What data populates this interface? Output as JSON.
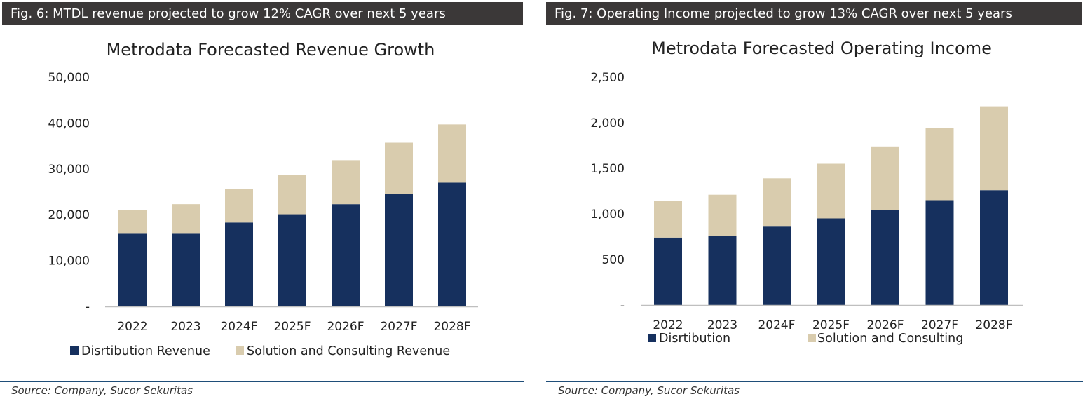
{
  "figures": [
    {
      "caption": "Fig. 6: MTDL revenue projected to grow 12% CAGR over next 5 years",
      "source": "Source: Company, Sucor Sekuritas"
    },
    {
      "caption": "Fig. 7: Operating Income projected to grow 13% CAGR over next 5 years",
      "source": "Source: Company, Sucor Sekuritas"
    }
  ],
  "colors": {
    "dark_series": "#16305e",
    "light_series": "#d9ccae",
    "caption_bar": "#3b3838",
    "source_rule": "#1f4e79",
    "axis": "#bfbfbf"
  },
  "chart_data": [
    {
      "type": "bar",
      "stacked": true,
      "title": "Metrodata Forecasted Revenue Growth",
      "categories": [
        "2022",
        "2023",
        "2024F",
        "2025F",
        "2026F",
        "2027F",
        "2028F"
      ],
      "series": [
        {
          "name": "Disrtibution Revenue",
          "values": [
            16000,
            16000,
            18300,
            20100,
            22300,
            24500,
            27000
          ]
        },
        {
          "name": "Solution and Consulting Revenue",
          "values": [
            5000,
            6300,
            7300,
            8600,
            9600,
            11200,
            12700
          ]
        }
      ],
      "yticks": [
        "-",
        "10,000",
        "20,000",
        "30,000",
        "40,000",
        "50,000"
      ],
      "ylim": [
        0,
        50000
      ],
      "grid": false,
      "legend": "bottom"
    },
    {
      "type": "bar",
      "stacked": true,
      "title": "Metrodata Forecasted Operating Income",
      "categories": [
        "2022",
        "2023",
        "2024F",
        "2025F",
        "2026F",
        "2027F",
        "2028F"
      ],
      "series": [
        {
          "name": "Disrtibution",
          "values": [
            740,
            760,
            860,
            950,
            1040,
            1150,
            1260
          ]
        },
        {
          "name": "Solution and Consulting",
          "values": [
            400,
            450,
            530,
            600,
            700,
            790,
            920
          ]
        }
      ],
      "yticks": [
        "-",
        "500",
        "1,000",
        "1,500",
        "2,000",
        "2,500"
      ],
      "ylim": [
        0,
        2500
      ],
      "grid": false,
      "legend": "bottom"
    }
  ]
}
